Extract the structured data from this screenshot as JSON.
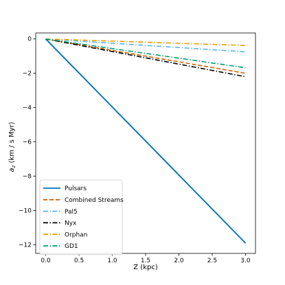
{
  "chart_data": {
    "type": "line",
    "title": "",
    "xlabel": "Z (kpc)",
    "ylabel": "a_z (km / s Myr)",
    "ylabel_main": "a",
    "ylabel_sub": "z",
    "ylabel_rest": " (km / s Myr)",
    "xlim": [
      -0.15,
      3.15
    ],
    "ylim": [
      -12.5,
      0.35
    ],
    "xticks": [
      0.0,
      0.5,
      1.0,
      1.5,
      2.0,
      2.5,
      3.0
    ],
    "xtick_labels": [
      "0.0",
      "0.5",
      "1.0",
      "1.5",
      "2.0",
      "2.5",
      "3.0"
    ],
    "yticks": [
      0,
      -2,
      -4,
      -6,
      -8,
      -10,
      -12
    ],
    "ytick_labels": [
      "0",
      "−2",
      "−4",
      "−6",
      "−8",
      "−10",
      "−12"
    ],
    "grid": false,
    "legend_position": "lower-left",
    "series": [
      {
        "name": "Pulsars",
        "color": "#0072b2",
        "dash": "solid",
        "x": [
          0,
          3
        ],
        "y": [
          0,
          -11.9
        ]
      },
      {
        "name": "Combined Streams",
        "color": "#d55e00",
        "dash": "dashed",
        "x": [
          0,
          3
        ],
        "y": [
          0,
          -2.0
        ]
      },
      {
        "name": "Pal5",
        "color": "#56b4e9",
        "dash": "dashdot",
        "x": [
          0,
          3
        ],
        "y": [
          0,
          -0.75
        ]
      },
      {
        "name": "Nyx",
        "color": "#000000",
        "dash": "dashdot",
        "x": [
          0,
          3
        ],
        "y": [
          0,
          -2.2
        ]
      },
      {
        "name": "Orphan",
        "color": "#e69f00",
        "dash": "dashdot",
        "x": [
          0,
          3
        ],
        "y": [
          0,
          -0.38
        ]
      },
      {
        "name": "GD1",
        "color": "#009e73",
        "dash": "dashdot",
        "x": [
          0,
          3
        ],
        "y": [
          0,
          -1.68
        ]
      }
    ]
  }
}
